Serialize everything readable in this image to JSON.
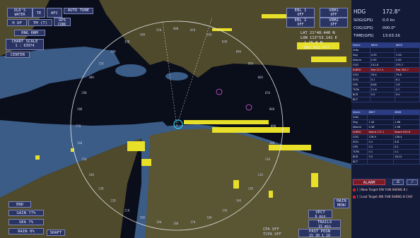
{
  "top_left": {
    "head_up": "H UP",
    "true_motion": "TM (T)",
    "gps_label": "GPS",
    "gps_sub": "CONC",
    "rng_label": "RNG 6NM",
    "chart_scale_label": "CHART SCALE",
    "chart_scale_value": "1 : 63974",
    "center": "CENTER",
    "old_water_line1": "OLD'S",
    "old_water_line2": "WATER",
    "te": "TE",
    "afc": "AFC",
    "auto_label": "AUTO",
    "tune_label": "TUNE"
  },
  "top_right_buttons": [
    {
      "line1": "EBL 1",
      "line2": "OFF"
    },
    {
      "line1": "VRM1",
      "line2": "OFF"
    },
    {
      "line1": "EBL 2",
      "line2": "OFF"
    },
    {
      "line1": "VRM2",
      "line2": "OFF"
    }
  ],
  "cursor_readout": {
    "lat": "LAT 21°48.440 N",
    "lon": "LON 113°53.141 E",
    "rng": "1.75 N M",
    "brg": "BRG 012.4°T"
  },
  "own_ship": {
    "hdg_label": "HDG",
    "hdg_value": "172.8°",
    "sog_label": "SOG(GPS)",
    "sog_value": "0.0 kn",
    "cog_label": "COG(GPS)",
    "cog_value": "000.0°",
    "time_label": "TIME(GPS)",
    "time_value": "13:03:16"
  },
  "target_table_1": [
    [
      "Name",
      "8604",
      "8603"
    ],
    [
      "Vrds",
      "",
      ""
    ],
    [
      "Sog",
      "4.35",
      "1.54"
    ],
    [
      "Abscrn",
      "2.92",
      "2.62"
    ],
    [
      "COG",
      "101.8",
      "375.7"
    ],
    [
      "N-BRG",
      "Pod 117.1",
      "Pod 303.7"
    ],
    [
      "COG",
      "76.4",
      "79.8"
    ],
    [
      "SOG",
      "0.1",
      "6.1"
    ],
    [
      "CPA",
      "8.84",
      "1.8"
    ],
    [
      "TCPA",
      "11.6",
      "3.7"
    ],
    [
      "BCR",
      "3.5",
      "0.0"
    ],
    [
      "BCT",
      "",
      ""
    ]
  ],
  "target_table_2": [
    [
      "Name",
      "8607",
      "8608"
    ],
    [
      "Vrds",
      "",
      ""
    ],
    [
      "Sog",
      "1.44",
      "1.66"
    ],
    [
      "Abscrn",
      "0.36",
      "2.96"
    ],
    [
      "N-BRG",
      "Board 171.1",
      "Board 092.8"
    ],
    [
      "COG",
      "278.9",
      "136.4"
    ],
    [
      "SOG",
      "0.1",
      "8.8"
    ],
    [
      "CPA",
      "0.2",
      "8.1"
    ],
    [
      "TCPA",
      "0.1",
      "0.1"
    ],
    [
      "BCR",
      "5.5",
      "18.12"
    ],
    [
      "BCT",
      "",
      ""
    ]
  ],
  "alarm_button": "ALARM",
  "alarm_rows": [
    "[ ] New Target XIN YUN SHENG 8 (",
    "[ ] Lost Target XIN YUN SHENG 8 CHO"
  ],
  "bottom_left": {
    "end": "END",
    "gain_label": "GAIN",
    "gain_value": "77%",
    "sea_label": "SEA",
    "sea_value": "7%",
    "rain_label": "RAIN",
    "rain_value": "0%",
    "shaft": "SHAFT"
  },
  "bottom_right": {
    "vect_label": "VECT",
    "vect_value": "6 min",
    "trails_label": "TRAILS",
    "trails_value": "15 min",
    "past_posn_label": "PAST POSN",
    "past_posn_value": "15 30 1 10",
    "main_label": "MAIN",
    "main_sub": "MENU",
    "cpa_label": "CPA",
    "cpa_value": "OFF",
    "tcpa_label": "TCPA",
    "tcpa_value": "OFF"
  },
  "bearing_scale": [
    "340",
    "350",
    "000",
    "010",
    "020",
    "030",
    "040",
    "050",
    "060",
    "070",
    "080",
    "090",
    "100",
    "110",
    "120",
    "130",
    "140",
    "150",
    "160",
    "170",
    "180",
    "190",
    "200",
    "210",
    "220",
    "230",
    "240",
    "250",
    "260",
    "270",
    "280",
    "290",
    "300",
    "310",
    "320",
    "330"
  ],
  "colors": {
    "land": "#4f4a2c",
    "water": "#0a0d1a",
    "shallow": "#3b5c86",
    "echo": "#e8e028",
    "ring": "#e8e8e8",
    "button": "#2a3462"
  }
}
